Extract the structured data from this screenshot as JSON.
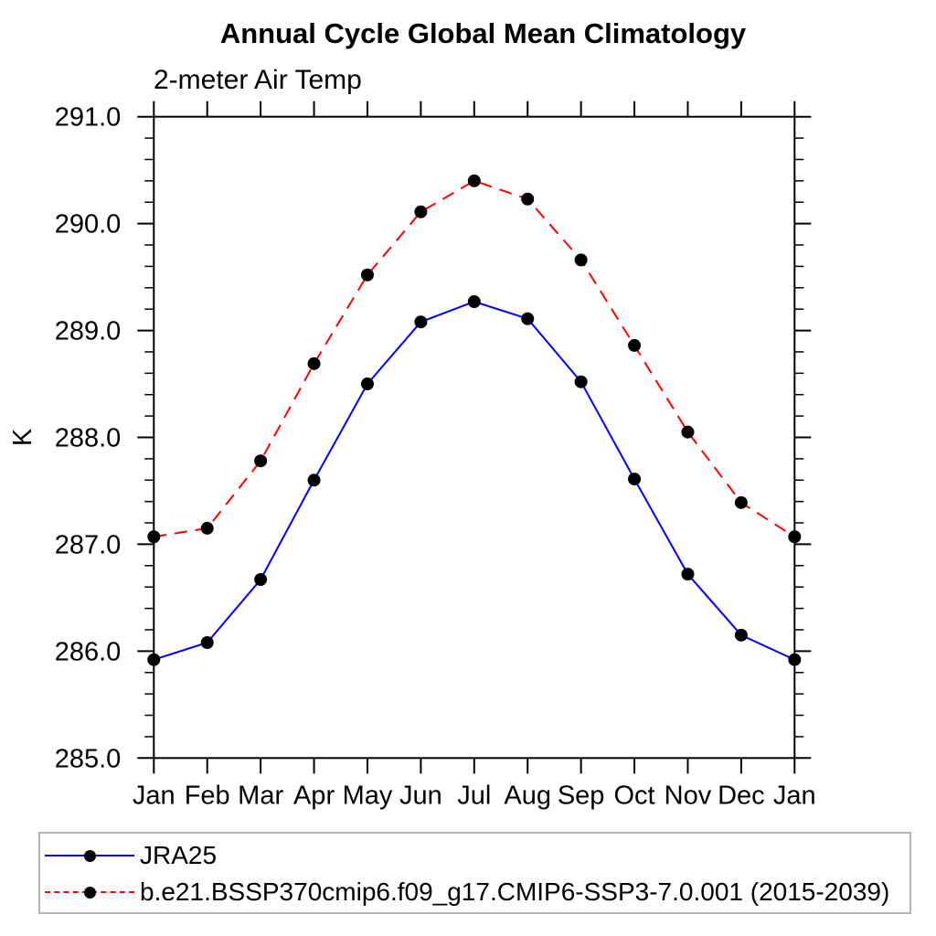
{
  "chart_data": {
    "type": "line",
    "title": "Annual Cycle Global Mean Climatology",
    "subtitle": "2-meter Air Temp",
    "ylabel": "K",
    "xlabel": "",
    "categories": [
      "Jan",
      "Feb",
      "Mar",
      "Apr",
      "May",
      "Jun",
      "Jul",
      "Aug",
      "Sep",
      "Oct",
      "Nov",
      "Dec",
      "Jan"
    ],
    "ylim": [
      285.0,
      291.0
    ],
    "ytick_labels": [
      "285.0",
      "286.0",
      "287.0",
      "288.0",
      "289.0",
      "290.0",
      "291.0"
    ],
    "y_minor_step": 0.2,
    "grid": false,
    "legend_position": "bottom-left-box",
    "axis_color": "#000000",
    "text_color": "#000000",
    "legend_border_color": "#b3b3b3",
    "marker": {
      "shape": "circle",
      "color": "#000000",
      "size": 7
    },
    "series": [
      {
        "name": "JRA25",
        "color": "#0000ff",
        "line_style": "solid",
        "values": [
          285.92,
          286.08,
          286.67,
          287.6,
          288.5,
          289.08,
          289.27,
          289.11,
          288.52,
          287.61,
          286.72,
          286.15,
          285.92
        ]
      },
      {
        "name": "b.e21.BSSP370cmip6.f09_g17.CMIP6-SSP3-7.0.001 (2015-2039)",
        "color": "#ff0000",
        "line_style": "dashed",
        "values": [
          287.07,
          287.15,
          287.78,
          288.69,
          289.52,
          290.11,
          290.4,
          290.23,
          289.66,
          288.86,
          288.05,
          287.39,
          287.07
        ]
      }
    ]
  }
}
